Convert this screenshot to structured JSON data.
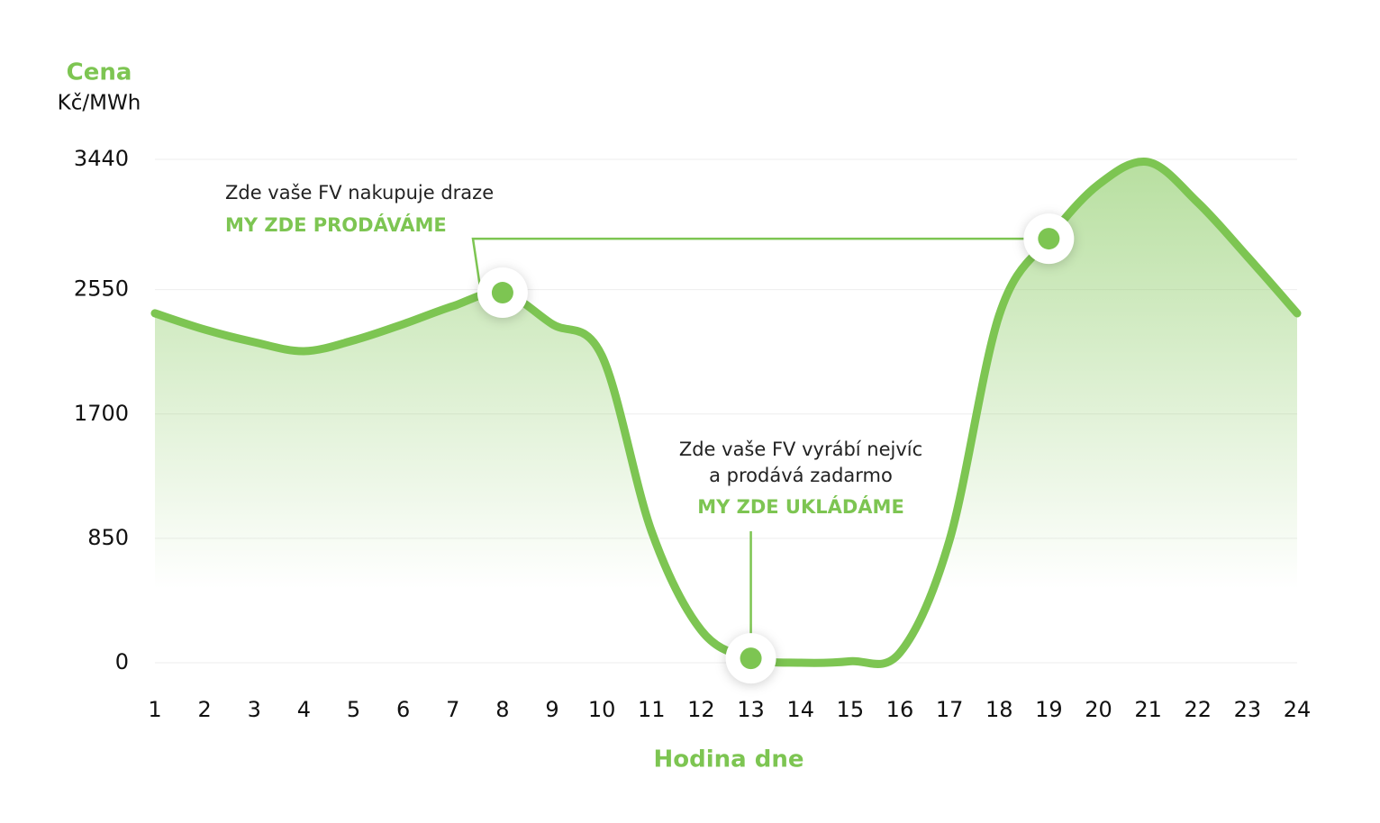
{
  "chart_data": {
    "type": "line",
    "y_label": "Cena",
    "y_unit": "Kč/MWh",
    "x_label": "Hodina dne",
    "x": [
      1,
      2,
      3,
      4,
      5,
      6,
      7,
      8,
      9,
      10,
      11,
      12,
      13,
      14,
      15,
      16,
      17,
      18,
      19,
      20,
      21,
      22,
      23,
      24
    ],
    "xlim": [
      1,
      24
    ],
    "xticks": [
      1,
      2,
      3,
      4,
      5,
      6,
      7,
      8,
      9,
      10,
      11,
      12,
      13,
      14,
      15,
      16,
      17,
      18,
      19,
      20,
      21,
      22,
      23,
      24
    ],
    "ylim": [
      0,
      3440
    ],
    "yticks": [
      0,
      850,
      1700,
      2550,
      3440
    ],
    "grid": true,
    "series": [
      {
        "color": "#7dc552",
        "values": [
          2388,
          2277,
          2191,
          2129,
          2203,
          2314,
          2437,
          2529,
          2314,
          2098,
          898,
          222,
          30,
          0,
          10,
          68,
          837,
          2375,
          2898,
          3268,
          3422,
          3145,
          2775,
          2388
        ]
      }
    ],
    "annotations": [
      {
        "lines": [
          "Zde vaše FV nakupuje draze"
        ],
        "highlight": "MY ZDE PRODÁVÁME",
        "points": [
          8,
          19
        ]
      },
      {
        "lines": [
          "Zde vaše FV vyrábí nejvíc",
          "a prodává zadarmo"
        ],
        "highlight": "MY ZDE UKLÁDÁME",
        "points": [
          13
        ]
      }
    ]
  }
}
